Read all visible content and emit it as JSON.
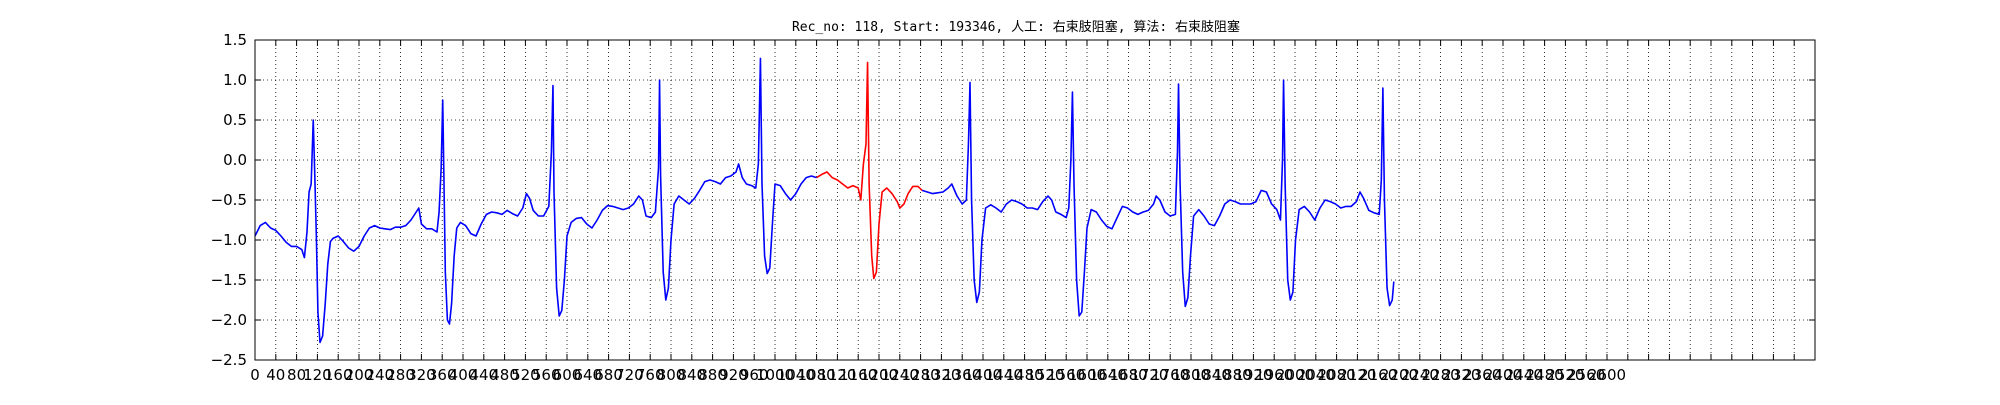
{
  "chart_data": {
    "type": "line",
    "title": "Rec_no: 118, Start: 193346, 人工: 右束肢阻塞, 算法: 右束肢阻塞",
    "xlabel": "",
    "ylabel": "",
    "xlim": [
      0,
      3000
    ],
    "ylim": [
      -2.5,
      1.5
    ],
    "grid": true,
    "x_tick_step": 40,
    "x_tick_labels": [
      "0",
      "40",
      "80",
      "120",
      "160",
      "200",
      "240",
      "280",
      "320",
      "360",
      "400",
      "440",
      "480",
      "520",
      "560",
      "600",
      "640",
      "680",
      "720",
      "760",
      "800",
      "840",
      "880",
      "920",
      "960",
      "1000",
      "1040",
      "1080",
      "1120",
      "1160",
      "1200",
      "1240",
      "1280",
      "1320",
      "1360",
      "1400",
      "1440",
      "1480",
      "1520",
      "1560",
      "1600",
      "1640",
      "1680",
      "1720",
      "1760",
      "1800",
      "1840",
      "1880",
      "1920",
      "1960",
      "2000",
      "2040",
      "2080",
      "2120",
      "2160",
      "2200",
      "2240",
      "2280",
      "2320",
      "2360",
      "2400",
      "2440",
      "2480",
      "2520",
      "2560",
      "2600"
    ],
    "y_ticks": [
      1.5,
      1.0,
      0.5,
      0.0,
      -0.5,
      -1.0,
      -1.5,
      -2.0,
      -2.5
    ],
    "y_tick_labels": [
      "1.5",
      "1.0",
      "0.5",
      "0.0",
      "−0.5",
      "−1.0",
      "−1.5",
      "−2.0",
      "−2.5"
    ],
    "series": [
      {
        "color": "#0000ff",
        "points": [
          [
            0,
            -0.95
          ],
          [
            10,
            -0.82
          ],
          [
            20,
            -0.78
          ],
          [
            30,
            -0.85
          ],
          [
            40,
            -0.88
          ],
          [
            50,
            -0.95
          ],
          [
            60,
            -1.03
          ],
          [
            70,
            -1.08
          ],
          [
            80,
            -1.08
          ],
          [
            90,
            -1.12
          ],
          [
            95,
            -1.22
          ],
          [
            100,
            -0.9
          ],
          [
            104,
            -0.4
          ],
          [
            108,
            -0.3
          ],
          [
            112,
            0.5
          ],
          [
            115,
            -0.2
          ],
          [
            118,
            -0.95
          ],
          [
            121,
            -1.9
          ],
          [
            125,
            -2.28
          ],
          [
            130,
            -2.2
          ],
          [
            135,
            -1.8
          ],
          [
            140,
            -1.3
          ],
          [
            145,
            -1.02
          ],
          [
            150,
            -0.98
          ],
          [
            160,
            -0.95
          ],
          [
            170,
            -1.02
          ],
          [
            180,
            -1.1
          ],
          [
            190,
            -1.14
          ],
          [
            200,
            -1.08
          ],
          [
            210,
            -0.95
          ],
          [
            220,
            -0.85
          ],
          [
            230,
            -0.82
          ],
          [
            240,
            -0.85
          ],
          [
            250,
            -0.86
          ],
          [
            260,
            -0.87
          ],
          [
            270,
            -0.84
          ],
          [
            280,
            -0.84
          ],
          [
            290,
            -0.82
          ],
          [
            300,
            -0.75
          ],
          [
            310,
            -0.65
          ],
          [
            315,
            -0.6
          ],
          [
            320,
            -0.8
          ],
          [
            330,
            -0.86
          ],
          [
            340,
            -0.86
          ],
          [
            350,
            -0.9
          ],
          [
            354,
            -0.65
          ],
          [
            358,
            -0.1
          ],
          [
            361,
            0.75
          ],
          [
            363,
            -0.1
          ],
          [
            366,
            -1.4
          ],
          [
            370,
            -2.0
          ],
          [
            374,
            -2.05
          ],
          [
            378,
            -1.8
          ],
          [
            383,
            -1.2
          ],
          [
            388,
            -0.85
          ],
          [
            395,
            -0.78
          ],
          [
            405,
            -0.82
          ],
          [
            415,
            -0.92
          ],
          [
            425,
            -0.95
          ],
          [
            435,
            -0.8
          ],
          [
            445,
            -0.68
          ],
          [
            455,
            -0.65
          ],
          [
            465,
            -0.66
          ],
          [
            475,
            -0.68
          ],
          [
            485,
            -0.63
          ],
          [
            495,
            -0.67
          ],
          [
            505,
            -0.7
          ],
          [
            515,
            -0.6
          ],
          [
            522,
            -0.42
          ],
          [
            528,
            -0.48
          ],
          [
            535,
            -0.63
          ],
          [
            545,
            -0.7
          ],
          [
            555,
            -0.7
          ],
          [
            565,
            -0.58
          ],
          [
            570,
            0.1
          ],
          [
            573,
            0.93
          ],
          [
            575,
            -0.4
          ],
          [
            580,
            -1.6
          ],
          [
            585,
            -1.95
          ],
          [
            590,
            -1.88
          ],
          [
            595,
            -1.5
          ],
          [
            600,
            -0.95
          ],
          [
            608,
            -0.78
          ],
          [
            618,
            -0.73
          ],
          [
            628,
            -0.72
          ],
          [
            638,
            -0.8
          ],
          [
            648,
            -0.85
          ],
          [
            658,
            -0.75
          ],
          [
            668,
            -0.63
          ],
          [
            678,
            -0.57
          ],
          [
            688,
            -0.58
          ],
          [
            698,
            -0.6
          ],
          [
            708,
            -0.62
          ],
          [
            718,
            -0.6
          ],
          [
            728,
            -0.55
          ],
          [
            738,
            -0.45
          ],
          [
            745,
            -0.5
          ],
          [
            752,
            -0.7
          ],
          [
            762,
            -0.72
          ],
          [
            770,
            -0.65
          ],
          [
            776,
            -0.1
          ],
          [
            778,
            1.0
          ],
          [
            780,
            -0.2
          ],
          [
            785,
            -1.4
          ],
          [
            790,
            -1.75
          ],
          [
            795,
            -1.6
          ],
          [
            800,
            -1.0
          ],
          [
            806,
            -0.55
          ],
          [
            815,
            -0.45
          ],
          [
            825,
            -0.5
          ],
          [
            835,
            -0.55
          ],
          [
            845,
            -0.48
          ],
          [
            855,
            -0.38
          ],
          [
            865,
            -0.27
          ],
          [
            875,
            -0.25
          ],
          [
            885,
            -0.27
          ],
          [
            895,
            -0.3
          ],
          [
            905,
            -0.22
          ],
          [
            915,
            -0.2
          ],
          [
            925,
            -0.15
          ],
          [
            930,
            -0.05
          ],
          [
            937,
            -0.22
          ],
          [
            945,
            -0.3
          ],
          [
            955,
            -0.32
          ],
          [
            963,
            -0.35
          ],
          [
            968,
            -0.05
          ],
          [
            972,
            1.27
          ],
          [
            975,
            -0.3
          ],
          [
            980,
            -1.2
          ],
          [
            985,
            -1.42
          ],
          [
            990,
            -1.35
          ],
          [
            995,
            -0.8
          ],
          [
            1000,
            -0.3
          ],
          [
            1010,
            -0.32
          ],
          [
            1020,
            -0.42
          ],
          [
            1030,
            -0.5
          ],
          [
            1040,
            -0.42
          ],
          [
            1050,
            -0.3
          ],
          [
            1060,
            -0.22
          ],
          [
            1070,
            -0.2
          ],
          [
            1080,
            -0.22
          ]
        ]
      },
      {
        "color": "#ff0000",
        "points": [
          [
            1080,
            -0.22
          ],
          [
            1090,
            -0.18
          ],
          [
            1100,
            -0.15
          ],
          [
            1110,
            -0.22
          ],
          [
            1120,
            -0.25
          ],
          [
            1130,
            -0.3
          ],
          [
            1140,
            -0.35
          ],
          [
            1150,
            -0.32
          ],
          [
            1160,
            -0.35
          ],
          [
            1165,
            -0.5
          ],
          [
            1170,
            -0.05
          ],
          [
            1175,
            0.2
          ],
          [
            1178,
            1.22
          ],
          [
            1181,
            -0.3
          ],
          [
            1186,
            -1.2
          ],
          [
            1190,
            -1.48
          ],
          [
            1195,
            -1.4
          ],
          [
            1200,
            -0.8
          ],
          [
            1206,
            -0.4
          ],
          [
            1215,
            -0.35
          ],
          [
            1225,
            -0.42
          ],
          [
            1235,
            -0.52
          ],
          [
            1240,
            -0.6
          ],
          [
            1248,
            -0.55
          ],
          [
            1256,
            -0.42
          ],
          [
            1265,
            -0.33
          ],
          [
            1275,
            -0.33
          ],
          [
            1283,
            -0.38
          ]
        ]
      },
      {
        "color": "#0000ff",
        "points": [
          [
            1283,
            -0.38
          ],
          [
            1293,
            -0.4
          ],
          [
            1303,
            -0.42
          ],
          [
            1313,
            -0.41
          ],
          [
            1323,
            -0.4
          ],
          [
            1333,
            -0.35
          ],
          [
            1340,
            -0.3
          ],
          [
            1350,
            -0.45
          ],
          [
            1360,
            -0.55
          ],
          [
            1368,
            -0.5
          ],
          [
            1372,
            0.2
          ],
          [
            1375,
            0.97
          ],
          [
            1378,
            -0.5
          ],
          [
            1383,
            -1.5
          ],
          [
            1388,
            -1.78
          ],
          [
            1393,
            -1.65
          ],
          [
            1398,
            -1.0
          ],
          [
            1405,
            -0.6
          ],
          [
            1415,
            -0.56
          ],
          [
            1425,
            -0.6
          ],
          [
            1435,
            -0.65
          ],
          [
            1445,
            -0.55
          ],
          [
            1455,
            -0.5
          ],
          [
            1465,
            -0.52
          ],
          [
            1475,
            -0.55
          ],
          [
            1485,
            -0.6
          ],
          [
            1495,
            -0.6
          ],
          [
            1505,
            -0.62
          ],
          [
            1515,
            -0.52
          ],
          [
            1525,
            -0.45
          ],
          [
            1532,
            -0.5
          ],
          [
            1540,
            -0.65
          ],
          [
            1550,
            -0.68
          ],
          [
            1560,
            -0.72
          ],
          [
            1565,
            -0.6
          ],
          [
            1569,
            0.0
          ],
          [
            1572,
            0.85
          ],
          [
            1575,
            -0.3
          ],
          [
            1580,
            -1.5
          ],
          [
            1585,
            -1.95
          ],
          [
            1590,
            -1.9
          ],
          [
            1595,
            -1.4
          ],
          [
            1600,
            -0.85
          ],
          [
            1608,
            -0.62
          ],
          [
            1618,
            -0.65
          ],
          [
            1628,
            -0.75
          ],
          [
            1638,
            -0.83
          ],
          [
            1648,
            -0.86
          ],
          [
            1658,
            -0.72
          ],
          [
            1668,
            -0.58
          ],
          [
            1678,
            -0.6
          ],
          [
            1688,
            -0.65
          ],
          [
            1698,
            -0.68
          ],
          [
            1708,
            -0.65
          ],
          [
            1718,
            -0.63
          ],
          [
            1728,
            -0.55
          ],
          [
            1733,
            -0.45
          ],
          [
            1740,
            -0.5
          ],
          [
            1750,
            -0.65
          ],
          [
            1760,
            -0.7
          ],
          [
            1770,
            -0.68
          ],
          [
            1774,
            0.1
          ],
          [
            1776,
            0.95
          ],
          [
            1779,
            -0.3
          ],
          [
            1784,
            -1.4
          ],
          [
            1789,
            -1.83
          ],
          [
            1794,
            -1.72
          ],
          [
            1799,
            -1.2
          ],
          [
            1805,
            -0.7
          ],
          [
            1815,
            -0.62
          ],
          [
            1825,
            -0.7
          ],
          [
            1835,
            -0.8
          ],
          [
            1845,
            -0.82
          ],
          [
            1855,
            -0.7
          ],
          [
            1865,
            -0.55
          ],
          [
            1875,
            -0.5
          ],
          [
            1885,
            -0.52
          ],
          [
            1895,
            -0.55
          ],
          [
            1905,
            -0.55
          ],
          [
            1915,
            -0.55
          ],
          [
            1925,
            -0.52
          ],
          [
            1935,
            -0.38
          ],
          [
            1945,
            -0.4
          ],
          [
            1955,
            -0.55
          ],
          [
            1965,
            -0.62
          ],
          [
            1972,
            -0.75
          ],
          [
            1976,
            0.0
          ],
          [
            1978,
            1.0
          ],
          [
            1981,
            -0.3
          ],
          [
            1986,
            -1.5
          ],
          [
            1991,
            -1.75
          ],
          [
            1996,
            -1.65
          ],
          [
            2001,
            -1.0
          ],
          [
            2008,
            -0.62
          ],
          [
            2018,
            -0.58
          ],
          [
            2028,
            -0.65
          ],
          [
            2038,
            -0.75
          ],
          [
            2048,
            -0.6
          ],
          [
            2058,
            -0.5
          ],
          [
            2068,
            -0.52
          ],
          [
            2078,
            -0.55
          ],
          [
            2088,
            -0.6
          ],
          [
            2098,
            -0.58
          ],
          [
            2108,
            -0.58
          ],
          [
            2118,
            -0.52
          ],
          [
            2125,
            -0.4
          ],
          [
            2132,
            -0.48
          ],
          [
            2142,
            -0.63
          ],
          [
            2152,
            -0.66
          ],
          [
            2162,
            -0.68
          ],
          [
            2166,
            -0.25
          ],
          [
            2169,
            0.9
          ],
          [
            2172,
            -0.5
          ],
          [
            2177,
            -1.6
          ],
          [
            2182,
            -1.82
          ],
          [
            2187,
            -1.75
          ],
          [
            2190,
            -1.52
          ]
        ]
      }
    ]
  }
}
